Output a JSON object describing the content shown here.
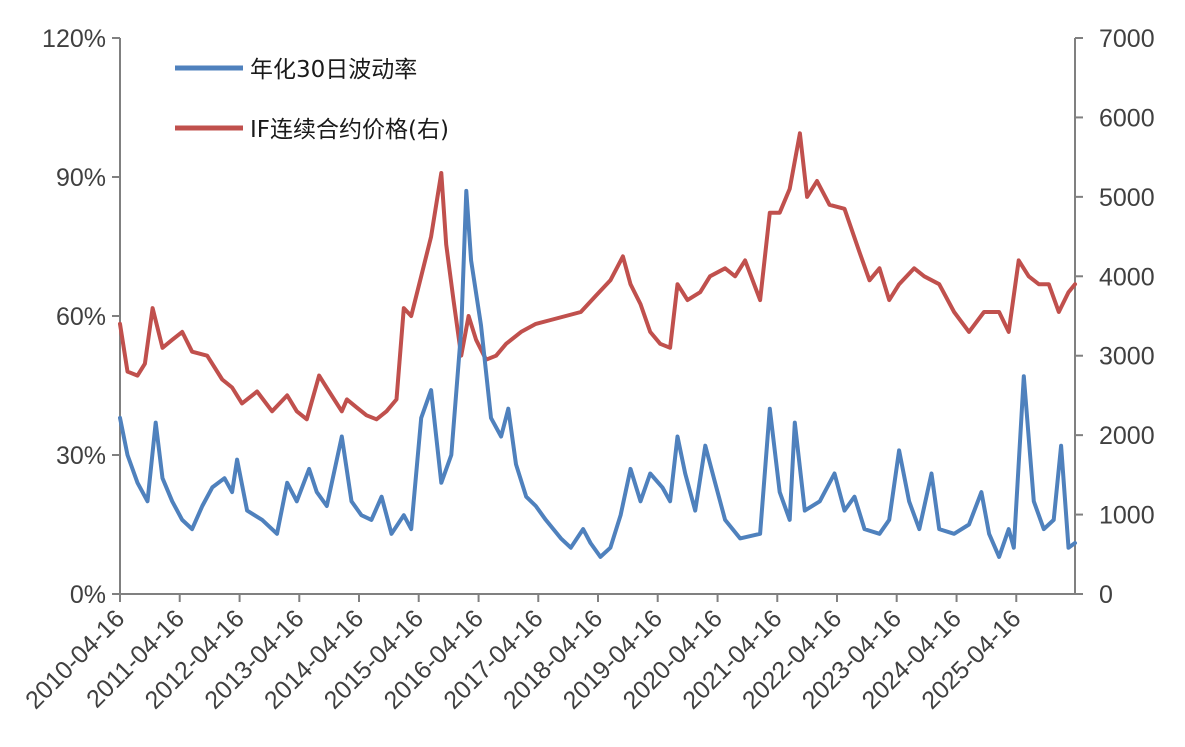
{
  "chart_data": {
    "type": "line",
    "legend": {
      "placement": "top-left",
      "entries": [
        "年化30日波动率",
        "IF连续合约价格(右)"
      ]
    },
    "series": [
      {
        "name": "年化30日波动率",
        "axis": "left",
        "color": "#4F81BD",
        "points": [
          [
            "2010-04-16",
            38
          ],
          [
            "2010-06-01",
            30
          ],
          [
            "2010-08-01",
            24
          ],
          [
            "2010-10-01",
            20
          ],
          [
            "2010-11-20",
            37
          ],
          [
            "2011-01-01",
            25
          ],
          [
            "2011-03-01",
            20
          ],
          [
            "2011-05-01",
            16
          ],
          [
            "2011-07-01",
            14
          ],
          [
            "2011-09-01",
            19
          ],
          [
            "2011-11-01",
            23
          ],
          [
            "2012-01-15",
            25
          ],
          [
            "2012-03-01",
            22
          ],
          [
            "2012-04-01",
            29
          ],
          [
            "2012-06-01",
            18
          ],
          [
            "2012-09-01",
            16
          ],
          [
            "2012-12-01",
            13
          ],
          [
            "2013-02-01",
            24
          ],
          [
            "2013-04-01",
            20
          ],
          [
            "2013-06-15",
            27
          ],
          [
            "2013-08-01",
            22
          ],
          [
            "2013-10-01",
            19
          ],
          [
            "2014-01-01",
            34
          ],
          [
            "2014-03-01",
            20
          ],
          [
            "2014-05-01",
            17
          ],
          [
            "2014-07-01",
            16
          ],
          [
            "2014-09-01",
            21
          ],
          [
            "2014-11-01",
            13
          ],
          [
            "2015-01-15",
            17
          ],
          [
            "2015-03-01",
            14
          ],
          [
            "2015-05-01",
            38
          ],
          [
            "2015-07-01",
            44
          ],
          [
            "2015-09-01",
            24
          ],
          [
            "2015-11-01",
            30
          ],
          [
            "2016-01-01",
            57
          ],
          [
            "2016-02-01",
            87
          ],
          [
            "2016-03-01",
            72
          ],
          [
            "2016-05-01",
            58
          ],
          [
            "2016-07-01",
            38
          ],
          [
            "2016-09-01",
            34
          ],
          [
            "2016-10-15",
            40
          ],
          [
            "2016-12-01",
            28
          ],
          [
            "2017-02-01",
            21
          ],
          [
            "2017-04-01",
            19
          ],
          [
            "2017-06-01",
            16
          ],
          [
            "2017-09-01",
            12
          ],
          [
            "2017-11-01",
            10
          ],
          [
            "2018-01-15",
            14
          ],
          [
            "2018-03-01",
            11
          ],
          [
            "2018-05-01",
            8
          ],
          [
            "2018-07-01",
            10
          ],
          [
            "2018-09-01",
            17
          ],
          [
            "2018-11-01",
            27
          ],
          [
            "2019-01-01",
            20
          ],
          [
            "2019-03-01",
            26
          ],
          [
            "2019-05-15",
            23
          ],
          [
            "2019-07-01",
            20
          ],
          [
            "2019-08-15",
            34
          ],
          [
            "2019-10-01",
            26
          ],
          [
            "2019-12-01",
            18
          ],
          [
            "2020-02-01",
            32
          ],
          [
            "2020-04-01",
            24
          ],
          [
            "2020-06-01",
            16
          ],
          [
            "2020-09-01",
            12
          ],
          [
            "2021-01-01",
            13
          ],
          [
            "2021-03-01",
            40
          ],
          [
            "2021-05-01",
            22
          ],
          [
            "2021-07-01",
            16
          ],
          [
            "2021-08-01",
            37
          ],
          [
            "2021-10-01",
            18
          ],
          [
            "2022-01-01",
            20
          ],
          [
            "2022-04-01",
            26
          ],
          [
            "2022-06-01",
            18
          ],
          [
            "2022-08-01",
            21
          ],
          [
            "2022-10-01",
            14
          ],
          [
            "2023-01-01",
            13
          ],
          [
            "2023-03-01",
            16
          ],
          [
            "2023-05-01",
            31
          ],
          [
            "2023-07-01",
            20
          ],
          [
            "2023-09-01",
            14
          ],
          [
            "2023-11-15",
            26
          ],
          [
            "2024-01-01",
            14
          ],
          [
            "2024-04-01",
            13
          ],
          [
            "2024-07-01",
            15
          ],
          [
            "2024-09-15",
            22
          ],
          [
            "2024-11-01",
            13
          ],
          [
            "2025-01-01",
            8
          ],
          [
            "2025-03-01",
            14
          ],
          [
            "2025-04-01",
            10
          ],
          [
            "2025-06-01",
            47
          ],
          [
            "2025-08-01",
            20
          ],
          [
            "2025-10-01",
            14
          ],
          [
            "2025-12-01",
            16
          ],
          [
            "2026-01-15",
            32
          ],
          [
            "2026-03-01",
            10
          ],
          [
            "2026-04-10",
            11
          ]
        ]
      },
      {
        "name": "IF连续合约价格(右)",
        "axis": "right",
        "color": "#C0504D",
        "points": [
          [
            "2010-04-16",
            3400
          ],
          [
            "2010-06-01",
            2800
          ],
          [
            "2010-08-01",
            2750
          ],
          [
            "2010-09-15",
            2900
          ],
          [
            "2010-11-01",
            3600
          ],
          [
            "2011-01-01",
            3100
          ],
          [
            "2011-03-01",
            3200
          ],
          [
            "2011-05-01",
            3300
          ],
          [
            "2011-07-01",
            3050
          ],
          [
            "2011-10-01",
            3000
          ],
          [
            "2012-01-01",
            2700
          ],
          [
            "2012-03-01",
            2600
          ],
          [
            "2012-05-01",
            2400
          ],
          [
            "2012-08-01",
            2550
          ],
          [
            "2012-11-01",
            2300
          ],
          [
            "2013-02-01",
            2500
          ],
          [
            "2013-04-01",
            2300
          ],
          [
            "2013-06-01",
            2200
          ],
          [
            "2013-08-15",
            2750
          ],
          [
            "2013-10-15",
            2550
          ],
          [
            "2014-01-01",
            2300
          ],
          [
            "2014-02-01",
            2450
          ],
          [
            "2014-04-01",
            2350
          ],
          [
            "2014-06-01",
            2250
          ],
          [
            "2014-08-01",
            2200
          ],
          [
            "2014-10-01",
            2300
          ],
          [
            "2014-12-01",
            2450
          ],
          [
            "2015-01-15",
            3600
          ],
          [
            "2015-03-01",
            3500
          ],
          [
            "2015-05-01",
            4000
          ],
          [
            "2015-07-01",
            4500
          ],
          [
            "2015-09-01",
            5300
          ],
          [
            "2015-10-01",
            4400
          ],
          [
            "2015-11-15",
            3700
          ],
          [
            "2016-01-01",
            3000
          ],
          [
            "2016-02-15",
            3500
          ],
          [
            "2016-04-01",
            3200
          ],
          [
            "2016-06-01",
            2950
          ],
          [
            "2016-08-01",
            3000
          ],
          [
            "2016-10-01",
            3150
          ],
          [
            "2017-01-01",
            3300
          ],
          [
            "2017-04-01",
            3400
          ],
          [
            "2017-07-01",
            3450
          ],
          [
            "2017-10-01",
            3500
          ],
          [
            "2018-01-01",
            3550
          ],
          [
            "2018-04-01",
            3750
          ],
          [
            "2018-07-01",
            3950
          ],
          [
            "2018-09-15",
            4250
          ],
          [
            "2018-11-01",
            3900
          ],
          [
            "2019-01-01",
            3650
          ],
          [
            "2019-03-01",
            3300
          ],
          [
            "2019-05-01",
            3150
          ],
          [
            "2019-07-01",
            3100
          ],
          [
            "2019-08-15",
            3900
          ],
          [
            "2019-10-15",
            3700
          ],
          [
            "2020-01-01",
            3800
          ],
          [
            "2020-03-01",
            4000
          ],
          [
            "2020-06-01",
            4100
          ],
          [
            "2020-08-01",
            4000
          ],
          [
            "2020-10-01",
            4200
          ],
          [
            "2021-01-01",
            3700
          ],
          [
            "2021-03-01",
            4800
          ],
          [
            "2021-05-01",
            4800
          ],
          [
            "2021-07-01",
            5100
          ],
          [
            "2021-09-01",
            5800
          ],
          [
            "2021-10-15",
            5000
          ],
          [
            "2021-12-15",
            5200
          ],
          [
            "2022-03-01",
            4900
          ],
          [
            "2022-06-01",
            4850
          ],
          [
            "2022-09-01",
            4300
          ],
          [
            "2022-11-01",
            3950
          ],
          [
            "2023-01-01",
            4100
          ],
          [
            "2023-03-01",
            3700
          ],
          [
            "2023-05-01",
            3900
          ],
          [
            "2023-08-01",
            4100
          ],
          [
            "2023-10-01",
            4000
          ],
          [
            "2024-01-01",
            3900
          ],
          [
            "2024-04-01",
            3550
          ],
          [
            "2024-07-01",
            3300
          ],
          [
            "2024-10-01",
            3550
          ],
          [
            "2025-01-01",
            3550
          ],
          [
            "2025-03-01",
            3300
          ],
          [
            "2025-05-01",
            4200
          ],
          [
            "2025-07-01",
            4000
          ],
          [
            "2025-09-01",
            3900
          ],
          [
            "2025-11-01",
            3900
          ],
          [
            "2026-01-01",
            3550
          ],
          [
            "2026-03-01",
            3800
          ],
          [
            "2026-04-10",
            3900
          ]
        ]
      }
    ],
    "axes": {
      "x": {
        "type": "date",
        "range": [
          "2010-04-16",
          "2026-04-10"
        ],
        "ticks": [
          "2010-04-16",
          "2011-04-16",
          "2012-04-16",
          "2013-04-16",
          "2014-04-16",
          "2015-04-16",
          "2016-04-16",
          "2017-04-16",
          "2018-04-16",
          "2019-04-16",
          "2020-04-16",
          "2021-04-16",
          "2022-04-16",
          "2023-04-16",
          "2024-04-16",
          "2025-04-16"
        ],
        "label_rotation": -45
      },
      "y_left": {
        "range": [
          0,
          120
        ],
        "ticks": [
          0,
          30,
          60,
          90,
          120
        ],
        "tick_labels": [
          "0%",
          "30%",
          "60%",
          "90%",
          "120%"
        ]
      },
      "y_right": {
        "range": [
          0,
          7000
        ],
        "ticks": [
          0,
          1000,
          2000,
          3000,
          4000,
          5000,
          6000,
          7000
        ],
        "tick_labels": [
          "0",
          "1000",
          "2000",
          "3000",
          "4000",
          "5000",
          "6000",
          "7000"
        ]
      }
    },
    "grid": false
  }
}
